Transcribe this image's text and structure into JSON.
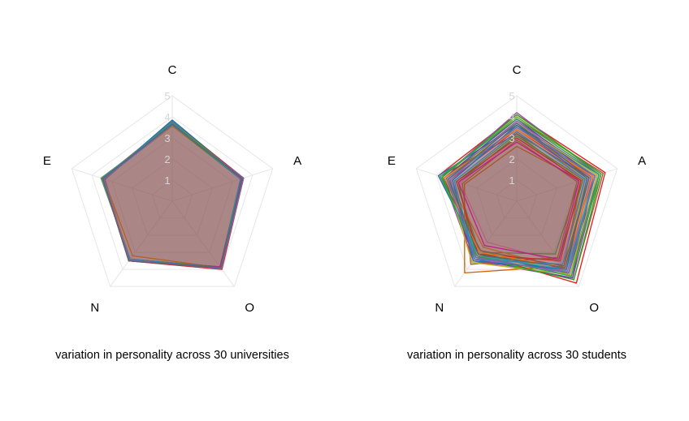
{
  "axes": [
    "C",
    "A",
    "O",
    "N",
    "E"
  ],
  "ticks": [
    "1",
    "2",
    "3",
    "4",
    "5"
  ],
  "max_value": 5,
  "grid_color": "#e6e6e6",
  "colors": [
    "#e41a1c",
    "#377eb8",
    "#4daf4a",
    "#984ea3",
    "#ff7f00",
    "#a65628",
    "#f781bf",
    "#1b9e77",
    "#d95f02",
    "#7570b3",
    "#e7298a",
    "#66a61e",
    "#e6ab02",
    "#1f78b4",
    "#33a02c",
    "#6a3d9a",
    "#b15928",
    "#17becf",
    "#bcbd22",
    "#8c564b",
    "#2ca02c",
    "#d62728",
    "#9467bd",
    "#ff7f0e",
    "#1f77b4",
    "#c51b8a",
    "#31a354",
    "#3182bd",
    "#756bb1",
    "#636363"
  ],
  "chart_data": [
    {
      "type": "radar",
      "caption": "variation in personality across 30 universities",
      "axes": [
        "C",
        "A",
        "O",
        "N",
        "E"
      ],
      "range": [
        0,
        5
      ],
      "fill_color": "#8b4a5a",
      "series": [
        {
          "values": [
            3.75,
            3.45,
            3.9,
            3.45,
            3.4
          ]
        },
        {
          "values": [
            3.6,
            3.5,
            3.95,
            3.5,
            3.45
          ]
        },
        {
          "values": [
            3.7,
            3.4,
            3.85,
            3.4,
            3.5
          ]
        },
        {
          "values": [
            3.8,
            3.55,
            3.95,
            3.45,
            3.35
          ]
        },
        {
          "values": [
            3.65,
            3.45,
            3.9,
            3.2,
            3.4
          ]
        },
        {
          "values": [
            3.55,
            3.5,
            3.9,
            3.45,
            3.45
          ]
        },
        {
          "values": [
            3.7,
            3.55,
            4.0,
            3.5,
            3.45
          ]
        },
        {
          "values": [
            3.6,
            3.45,
            3.85,
            3.4,
            3.4
          ]
        },
        {
          "values": [
            3.75,
            3.4,
            3.95,
            3.45,
            3.5
          ]
        },
        {
          "values": [
            3.65,
            3.5,
            3.9,
            3.5,
            3.45
          ]
        },
        {
          "values": [
            3.7,
            3.45,
            3.95,
            3.45,
            3.4
          ]
        },
        {
          "values": [
            3.6,
            3.55,
            3.85,
            3.4,
            3.55
          ]
        },
        {
          "values": [
            3.55,
            3.45,
            3.9,
            3.45,
            3.45
          ]
        },
        {
          "values": [
            3.85,
            3.5,
            3.95,
            3.5,
            3.4
          ]
        },
        {
          "values": [
            3.65,
            3.4,
            3.9,
            3.45,
            3.45
          ]
        },
        {
          "values": [
            3.7,
            3.5,
            3.95,
            3.4,
            3.4
          ]
        },
        {
          "values": [
            3.6,
            3.55,
            3.9,
            3.45,
            3.5
          ]
        },
        {
          "values": [
            3.75,
            3.45,
            3.85,
            3.5,
            3.45
          ]
        },
        {
          "values": [
            3.65,
            3.5,
            3.95,
            3.45,
            3.4
          ]
        },
        {
          "values": [
            3.7,
            3.45,
            3.9,
            3.4,
            3.45
          ]
        },
        {
          "values": [
            3.6,
            3.4,
            3.85,
            3.45,
            3.4
          ]
        },
        {
          "values": [
            3.75,
            3.55,
            4.0,
            3.5,
            3.45
          ]
        },
        {
          "values": [
            3.65,
            3.5,
            3.9,
            3.45,
            3.5
          ]
        },
        {
          "values": [
            3.7,
            3.45,
            3.95,
            3.4,
            3.4
          ]
        },
        {
          "values": [
            3.6,
            3.5,
            3.9,
            3.45,
            3.45
          ]
        },
        {
          "values": [
            3.65,
            3.45,
            3.85,
            3.5,
            3.4
          ]
        },
        {
          "values": [
            3.75,
            3.5,
            3.95,
            3.45,
            3.45
          ]
        },
        {
          "values": [
            3.7,
            3.4,
            3.9,
            3.4,
            3.5
          ]
        },
        {
          "values": [
            3.6,
            3.55,
            3.95,
            3.45,
            3.4
          ]
        },
        {
          "values": [
            3.65,
            3.5,
            3.9,
            3.5,
            3.45
          ]
        }
      ]
    },
    {
      "type": "radar",
      "caption": "variation in personality across 30 students",
      "axes": [
        "C",
        "A",
        "O",
        "N",
        "E"
      ],
      "range": [
        0,
        5
      ],
      "fill_color": "#8b4a5a",
      "series": [
        {
          "values": [
            4.1,
            4.4,
            4.8,
            3.1,
            3.9
          ]
        },
        {
          "values": [
            3.6,
            3.8,
            4.2,
            3.3,
            3.2
          ]
        },
        {
          "values": [
            3.2,
            3.1,
            3.1,
            3.0,
            3.0
          ]
        },
        {
          "values": [
            4.2,
            4.1,
            4.5,
            3.5,
            3.7
          ]
        },
        {
          "values": [
            3.5,
            3.7,
            4.0,
            2.7,
            3.4
          ]
        },
        {
          "values": [
            3.9,
            4.3,
            4.6,
            3.2,
            3.8
          ]
        },
        {
          "values": [
            3.0,
            3.4,
            3.6,
            2.4,
            2.8
          ]
        },
        {
          "values": [
            3.7,
            3.9,
            4.1,
            3.4,
            3.6
          ]
        },
        {
          "values": [
            2.6,
            3.2,
            3.8,
            4.2,
            2.6
          ]
        },
        {
          "values": [
            3.8,
            4.0,
            4.4,
            3.0,
            3.5
          ]
        },
        {
          "values": [
            3.4,
            3.6,
            3.9,
            3.6,
            3.3
          ]
        },
        {
          "values": [
            4.0,
            4.2,
            4.3,
            2.9,
            3.7
          ]
        },
        {
          "values": [
            3.3,
            3.5,
            3.7,
            3.5,
            3.1
          ]
        },
        {
          "values": [
            3.6,
            4.1,
            4.2,
            3.1,
            3.9
          ]
        },
        {
          "values": [
            3.1,
            3.3,
            3.4,
            3.3,
            2.9
          ]
        },
        {
          "values": [
            3.9,
            3.8,
            4.5,
            3.4,
            3.6
          ]
        },
        {
          "values": [
            2.9,
            3.0,
            3.3,
            3.7,
            2.7
          ]
        },
        {
          "values": [
            3.5,
            3.9,
            4.0,
            3.2,
            3.4
          ]
        },
        {
          "values": [
            3.7,
            4.0,
            4.3,
            3.6,
            3.5
          ]
        },
        {
          "values": [
            3.2,
            3.6,
            3.8,
            2.9,
            3.8
          ]
        },
        {
          "values": [
            4.1,
            4.2,
            4.6,
            3.3,
            3.7
          ]
        },
        {
          "values": [
            3.0,
            3.2,
            3.5,
            3.1,
            3.0
          ]
        },
        {
          "values": [
            3.8,
            3.7,
            4.1,
            3.4,
            3.3
          ]
        },
        {
          "values": [
            3.4,
            3.8,
            3.9,
            3.0,
            3.6
          ]
        },
        {
          "values": [
            3.6,
            3.5,
            4.0,
            3.5,
            3.2
          ]
        },
        {
          "values": [
            2.8,
            3.1,
            3.4,
            2.6,
            2.9
          ]
        },
        {
          "values": [
            3.9,
            4.1,
            4.4,
            3.2,
            3.8
          ]
        },
        {
          "values": [
            3.3,
            3.4,
            3.7,
            3.4,
            3.1
          ]
        },
        {
          "values": [
            3.5,
            3.9,
            4.2,
            3.3,
            3.5
          ]
        },
        {
          "values": [
            3.7,
            3.6,
            3.9,
            3.1,
            3.4
          ]
        }
      ]
    }
  ]
}
